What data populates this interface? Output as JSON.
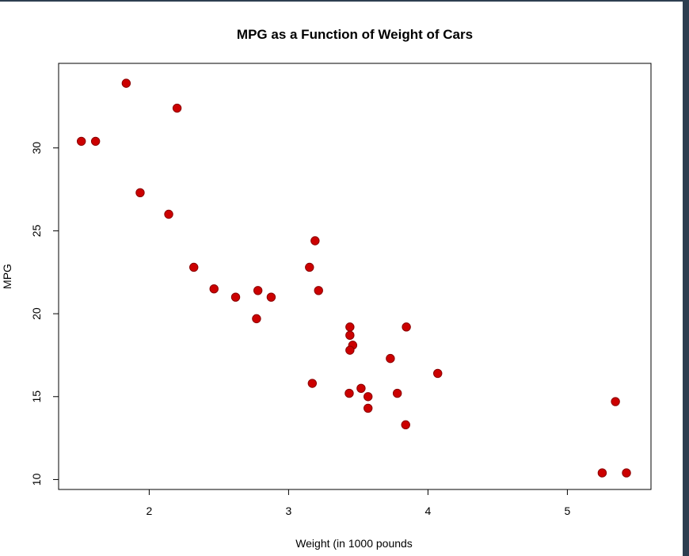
{
  "chart_data": {
    "type": "scatter",
    "title": "MPG as a Function of Weight of Cars",
    "xlabel": "Weight (in 1000 pounds",
    "ylabel": "MPG",
    "xlim": [
      1.35,
      5.6
    ],
    "ylim": [
      9.4,
      35.1
    ],
    "xticks": [
      2,
      3,
      4,
      5
    ],
    "yticks": [
      10,
      15,
      20,
      25,
      30
    ],
    "xtick_labels": [
      "2",
      "3",
      "4",
      "5"
    ],
    "ytick_labels": [
      "10",
      "15",
      "20",
      "25",
      "30"
    ],
    "point_color": "#cc0000",
    "point_edge_color": "#8b0000",
    "grid": false,
    "legend": "none",
    "points": [
      {
        "x": 2.62,
        "y": 21.0
      },
      {
        "x": 2.875,
        "y": 21.0
      },
      {
        "x": 2.32,
        "y": 22.8
      },
      {
        "x": 3.215,
        "y": 21.4
      },
      {
        "x": 3.44,
        "y": 18.7
      },
      {
        "x": 3.46,
        "y": 18.1
      },
      {
        "x": 3.57,
        "y": 14.3
      },
      {
        "x": 3.19,
        "y": 24.4
      },
      {
        "x": 3.15,
        "y": 22.8
      },
      {
        "x": 3.44,
        "y": 19.2
      },
      {
        "x": 3.44,
        "y": 17.8
      },
      {
        "x": 4.07,
        "y": 16.4
      },
      {
        "x": 3.73,
        "y": 17.3
      },
      {
        "x": 3.78,
        "y": 15.2
      },
      {
        "x": 5.25,
        "y": 10.4
      },
      {
        "x": 5.424,
        "y": 10.4
      },
      {
        "x": 5.345,
        "y": 14.7
      },
      {
        "x": 2.2,
        "y": 32.4
      },
      {
        "x": 1.615,
        "y": 30.4
      },
      {
        "x": 1.835,
        "y": 33.9
      },
      {
        "x": 2.465,
        "y": 21.5
      },
      {
        "x": 3.52,
        "y": 15.5
      },
      {
        "x": 3.435,
        "y": 15.2
      },
      {
        "x": 3.84,
        "y": 13.3
      },
      {
        "x": 3.845,
        "y": 19.2
      },
      {
        "x": 1.935,
        "y": 27.3
      },
      {
        "x": 2.14,
        "y": 26.0
      },
      {
        "x": 1.513,
        "y": 30.4
      },
      {
        "x": 3.17,
        "y": 15.8
      },
      {
        "x": 2.77,
        "y": 19.7
      },
      {
        "x": 3.57,
        "y": 15.0
      },
      {
        "x": 2.78,
        "y": 21.4
      }
    ]
  }
}
